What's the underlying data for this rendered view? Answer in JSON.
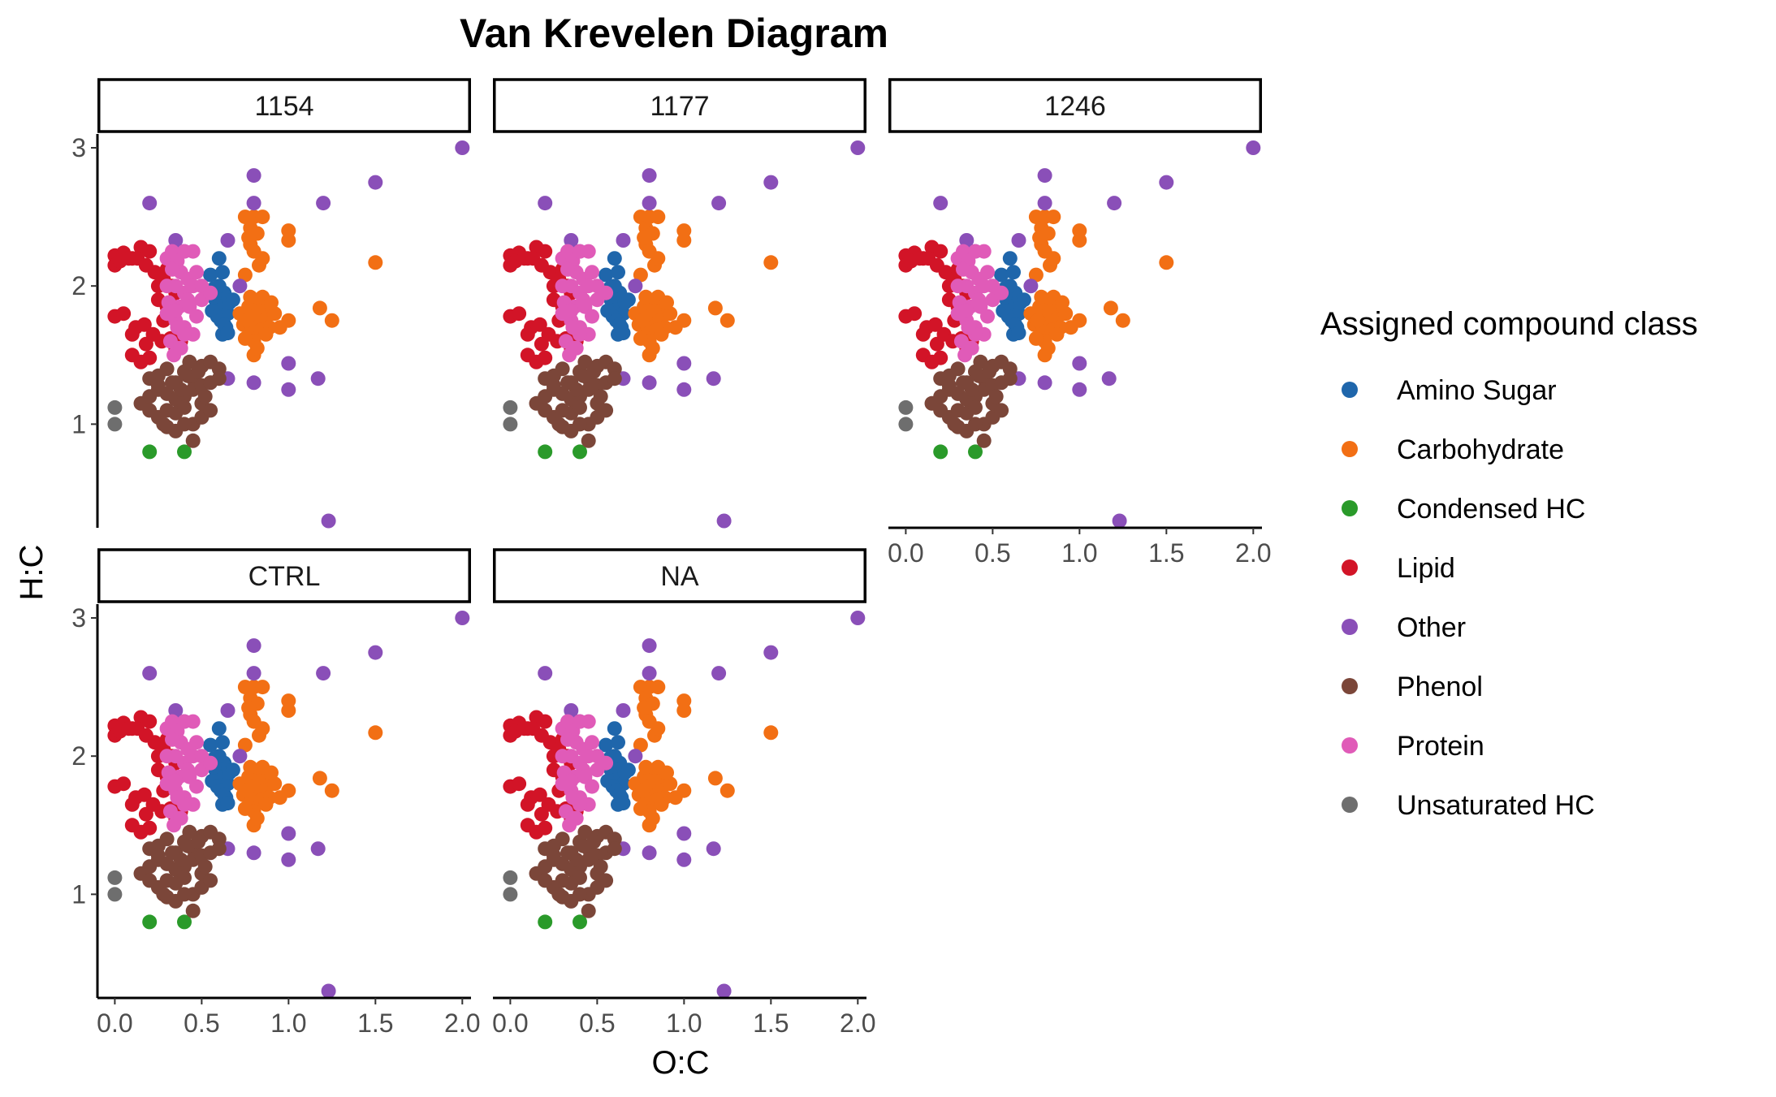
{
  "chart_data": {
    "type": "scatter",
    "title": "Van Krevelen Diagram",
    "xlabel": "O:C",
    "ylabel": "H:C",
    "xlim": [
      -0.1,
      2.05
    ],
    "ylim": [
      0.25,
      3.1
    ],
    "x_ticks": [
      0.0,
      0.5,
      1.0,
      1.5,
      2.0
    ],
    "x_tick_labels": [
      "0.0",
      "0.5",
      "1.0",
      "1.5",
      "2.0"
    ],
    "y_ticks": [
      1,
      2,
      3
    ],
    "y_tick_labels": [
      "1",
      "2",
      "3"
    ],
    "grid": false,
    "facets": [
      "1154",
      "1177",
      "1246",
      "CTRL",
      "NA"
    ],
    "legend": {
      "title": "Assigned compound class",
      "placement": "right",
      "entries": [
        {
          "name": "Amino Sugar",
          "color": "#1f66ab"
        },
        {
          "name": "Carbohydrate",
          "color": "#f26f14"
        },
        {
          "name": "Condensed HC",
          "color": "#2a9a2a"
        },
        {
          "name": "Lipid",
          "color": "#d21427"
        },
        {
          "name": "Other",
          "color": "#8a4fb8"
        },
        {
          "name": "Phenol",
          "color": "#7b4639"
        },
        {
          "name": "Protein",
          "color": "#e05bb8"
        },
        {
          "name": "Unsaturated HC",
          "color": "#6e6e6e"
        }
      ]
    },
    "series": [
      {
        "name": "Amino Sugar",
        "x": [
          0.55,
          0.57,
          0.6,
          0.62,
          0.58,
          0.6,
          0.63,
          0.65,
          0.56,
          0.59,
          0.61,
          0.64,
          0.62,
          0.66,
          0.68,
          0.6,
          0.57,
          0.63,
          0.65
        ],
        "y": [
          2.08,
          1.98,
          2.2,
          2.1,
          1.9,
          1.85,
          1.95,
          1.8,
          1.82,
          1.78,
          1.75,
          1.7,
          1.65,
          1.88,
          1.9,
          2.0,
          1.92,
          1.72,
          1.66
        ]
      },
      {
        "name": "Carbohydrate",
        "x": [
          0.75,
          0.78,
          0.8,
          0.82,
          0.85,
          0.78,
          0.8,
          0.83,
          0.75,
          0.8,
          0.85,
          0.88,
          0.9,
          0.72,
          0.77,
          0.8,
          0.83,
          0.86,
          0.89,
          0.74,
          0.79,
          0.84,
          0.87,
          0.8,
          0.76,
          0.92,
          0.95,
          1.0,
          1.0,
          0.77,
          0.85,
          0.8,
          0.82,
          1.0,
          1.18,
          1.25,
          1.5,
          0.9,
          0.75,
          0.78
        ],
        "y": [
          2.5,
          2.42,
          2.5,
          2.38,
          2.5,
          2.3,
          2.25,
          2.15,
          2.08,
          1.9,
          1.92,
          1.85,
          1.8,
          1.8,
          1.85,
          1.78,
          1.82,
          1.75,
          1.7,
          1.72,
          1.7,
          1.68,
          1.65,
          1.6,
          1.75,
          1.8,
          1.7,
          1.75,
          2.4,
          2.35,
          2.2,
          1.5,
          1.55,
          2.33,
          1.84,
          1.75,
          2.17,
          1.88,
          1.62,
          1.92
        ]
      },
      {
        "name": "Condensed HC",
        "x": [
          0.2,
          0.4
        ],
        "y": [
          0.8,
          0.8
        ]
      },
      {
        "name": "Lipid",
        "x": [
          0.0,
          0.05,
          0.1,
          0.15,
          0.2,
          0.0,
          0.03,
          0.08,
          0.13,
          0.18,
          0.23,
          0.25,
          0.28,
          0.3,
          0.33,
          0.35,
          0.0,
          0.05,
          0.12,
          0.17,
          0.22,
          0.27,
          0.32,
          0.1,
          0.15,
          0.2,
          0.25,
          0.1,
          0.18,
          0.28,
          0.35,
          0.3,
          0.38
        ],
        "y": [
          2.22,
          2.24,
          2.2,
          2.28,
          2.25,
          2.15,
          2.18,
          2.2,
          2.2,
          2.15,
          2.1,
          2.0,
          2.05,
          2.12,
          2.0,
          1.95,
          1.78,
          1.8,
          1.7,
          1.72,
          1.65,
          1.6,
          1.62,
          1.5,
          1.45,
          1.48,
          1.9,
          1.65,
          1.58,
          1.75,
          1.55,
          1.85,
          1.6
        ]
      },
      {
        "name": "Other",
        "x": [
          0.2,
          0.8,
          0.8,
          1.2,
          1.5,
          2.0,
          0.35,
          0.65,
          0.4,
          0.65,
          0.8,
          1.0,
          1.0,
          1.17,
          1.23,
          0.72
        ],
        "y": [
          2.6,
          2.8,
          2.6,
          2.6,
          2.75,
          3.0,
          2.33,
          2.33,
          2.25,
          1.33,
          1.3,
          1.25,
          1.44,
          1.33,
          0.3,
          2.0
        ]
      },
      {
        "name": "Phenol",
        "x": [
          0.2,
          0.25,
          0.3,
          0.35,
          0.4,
          0.45,
          0.5,
          0.55,
          0.6,
          0.15,
          0.2,
          0.25,
          0.3,
          0.35,
          0.4,
          0.45,
          0.5,
          0.55,
          0.25,
          0.3,
          0.35,
          0.4,
          0.45,
          0.5,
          0.35,
          0.4,
          0.3,
          0.45,
          0.5,
          0.25,
          0.38,
          0.42,
          0.6,
          0.52,
          0.55,
          0.2,
          0.28,
          0.33,
          0.43,
          0.48
        ],
        "y": [
          1.33,
          1.35,
          1.4,
          1.3,
          1.38,
          1.33,
          1.42,
          1.45,
          1.4,
          1.15,
          1.2,
          1.25,
          1.22,
          1.18,
          1.2,
          1.25,
          1.28,
          1.3,
          1.05,
          1.1,
          1.08,
          1.12,
          1.0,
          1.05,
          0.95,
          1.0,
          0.98,
          0.88,
          1.15,
          1.28,
          1.25,
          1.35,
          1.33,
          1.2,
          1.1,
          1.1,
          1.0,
          1.3,
          1.45,
          1.38
        ]
      },
      {
        "name": "Protein",
        "x": [
          0.3,
          0.33,
          0.36,
          0.4,
          0.45,
          0.38,
          0.42,
          0.47,
          0.3,
          0.35,
          0.4,
          0.45,
          0.5,
          0.33,
          0.37,
          0.42,
          0.3,
          0.35,
          0.4,
          0.45,
          0.32,
          0.36,
          0.34,
          0.38,
          0.31,
          0.35,
          0.43,
          0.5,
          0.4,
          0.36,
          0.55,
          0.47,
          0.33
        ],
        "y": [
          2.2,
          2.25,
          2.18,
          2.25,
          2.25,
          2.1,
          2.05,
          2.1,
          2.0,
          2.0,
          1.95,
          2.0,
          2.0,
          1.85,
          1.85,
          1.9,
          1.8,
          1.75,
          1.7,
          1.65,
          1.6,
          1.55,
          1.5,
          1.55,
          1.88,
          1.82,
          1.85,
          1.9,
          1.65,
          1.7,
          1.95,
          1.78,
          2.12
        ]
      },
      {
        "name": "Unsaturated HC",
        "x": [
          0.0,
          0.0
        ],
        "y": [
          1.12,
          1.0
        ]
      }
    ]
  }
}
